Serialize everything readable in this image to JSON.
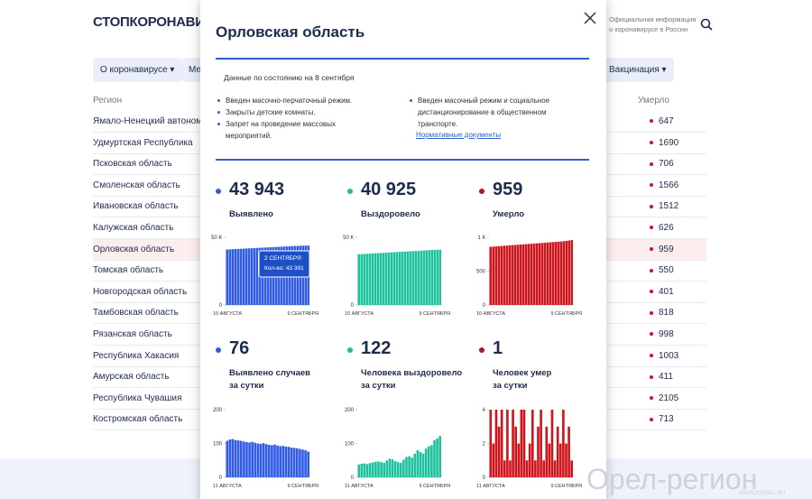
{
  "header": {
    "logo": "СТОПКОРОНАВИРУС",
    "info": [
      "Официальная информация",
      "о коронавирусе в России"
    ]
  },
  "nav": [
    "О коронавирусе",
    "Меры",
    "Вакцинация"
  ],
  "table": {
    "columns": [
      "Регион",
      "Умерло"
    ],
    "rows": [
      [
        "Ямало-Ненецкий автономный округ",
        "647"
      ],
      [
        "Удмуртская Республика",
        "1690"
      ],
      [
        "Псковская область",
        "706"
      ],
      [
        "Смоленская область",
        "1566"
      ],
      [
        "Ивановская область",
        "1512"
      ],
      [
        "Калужская область",
        "626"
      ],
      [
        "Орловская область",
        "959"
      ],
      [
        "Томская область",
        "550"
      ],
      [
        "Новгородская область",
        "401"
      ],
      [
        "Тамбовская область",
        "818"
      ],
      [
        "Рязанская область",
        "998"
      ],
      [
        "Республика Хакасия",
        "1003"
      ],
      [
        "Амурская область",
        "411"
      ],
      [
        "Республика Чувашия",
        "2105"
      ],
      [
        "Костромская область",
        "713"
      ]
    ]
  },
  "modal": {
    "title": "Орловская область",
    "date_note": "Данные по состоянию на 8 сентября",
    "bullets_left": [
      "Введен масочно-перчаточный режим.",
      "Закрыты детские комнаты.",
      "Запрет на проведение массовых мероприятий."
    ],
    "bullets_right": [
      "Введен масочный режим и социальное дистанционирование в общественном транспорте."
    ],
    "link": "Нормативные документы",
    "stats": [
      {
        "value": "43 943",
        "label": [
          "Выявлено"
        ],
        "chart": {
          "type": "bar",
          "color": "#2f5be8",
          "categories": [
            "10 АВГУСТА",
            null,
            null,
            null,
            null,
            null,
            null,
            null,
            null,
            null,
            null,
            null,
            null,
            null,
            null,
            null,
            null,
            null,
            null,
            null,
            null,
            null,
            null,
            null,
            null,
            null,
            null,
            null,
            null,
            null,
            "9 СЕНТЯБРЯ"
          ],
          "values": [
            40976,
            41083,
            41190,
            41297,
            41404,
            41511,
            41618,
            41725,
            41830,
            41935,
            42040,
            42145,
            42250,
            42352,
            42454,
            42556,
            42658,
            42760,
            42860,
            42960,
            43060,
            43160,
            43276,
            43391,
            43490,
            43580,
            43660,
            43740,
            43815,
            43880,
            43943
          ],
          "ylim": [
            0,
            50000
          ],
          "yticks": [
            0,
            {
              "value": 50000,
              "label": "50 К"
            }
          ],
          "tooltip": {
            "index": 23,
            "title": "2 СЕНТЯБРЯ",
            "text": "Кол-во: 43 391"
          }
        }
      },
      {
        "value": "40 925",
        "label": [
          "Выздоровело"
        ],
        "chart": {
          "type": "bar",
          "color": "#1fc29f",
          "categories": [
            "10 АВГУСТА",
            null,
            null,
            null,
            null,
            null,
            null,
            null,
            null,
            null,
            null,
            null,
            null,
            null,
            null,
            null,
            null,
            null,
            null,
            null,
            null,
            null,
            null,
            null,
            null,
            null,
            null,
            null,
            null,
            null,
            "9 СЕНТЯБРЯ"
          ],
          "values": [
            37510,
            37625,
            37740,
            37855,
            37970,
            38085,
            38200,
            38315,
            38430,
            38545,
            38660,
            38775,
            38890,
            39005,
            39120,
            39235,
            39350,
            39465,
            39580,
            39695,
            39810,
            39925,
            40040,
            40155,
            40270,
            40385,
            40500,
            40615,
            40730,
            40830,
            40925
          ],
          "ylim": [
            0,
            50000
          ],
          "yticks": [
            0,
            {
              "value": 50000,
              "label": "50 К"
            }
          ]
        }
      },
      {
        "value": "959",
        "label": [
          "Умерло"
        ],
        "chart": {
          "type": "bar",
          "color": "#d0141c",
          "categories": [
            "10 АВГУСТА",
            null,
            null,
            null,
            null,
            null,
            null,
            null,
            null,
            null,
            null,
            null,
            null,
            null,
            null,
            null,
            null,
            null,
            null,
            null,
            null,
            null,
            null,
            null,
            null,
            null,
            null,
            null,
            null,
            null,
            "9 СЕНТЯБРЯ"
          ],
          "values": [
            860,
            863,
            866,
            869,
            872,
            875,
            878,
            881,
            884,
            887,
            890,
            893,
            896,
            899,
            902,
            905,
            908,
            911,
            914,
            917,
            920,
            923,
            926,
            929,
            932,
            935,
            939,
            943,
            948,
            953,
            959
          ],
          "ylim": [
            0,
            1000
          ],
          "yticks": [
            0,
            500,
            {
              "value": 1000,
              "label": "1 К"
            }
          ]
        }
      },
      {
        "value": "76",
        "label": [
          "Выявлено случаев",
          "за сутки"
        ],
        "chart": {
          "type": "bar",
          "color": "#2f5be8",
          "categories": [
            "11 АВГУСТА",
            null,
            null,
            null,
            null,
            null,
            null,
            null,
            null,
            null,
            null,
            null,
            null,
            null,
            null,
            null,
            null,
            null,
            null,
            null,
            null,
            null,
            null,
            null,
            null,
            null,
            null,
            null,
            null,
            "9 СЕНТЯБРЯ"
          ],
          "values": [
            108,
            112,
            113,
            110,
            109,
            108,
            106,
            104,
            103,
            105,
            102,
            100,
            99,
            101,
            98,
            96,
            95,
            97,
            94,
            92,
            93,
            91,
            90,
            88,
            87,
            86,
            84,
            82,
            80,
            76
          ],
          "ylim": [
            0,
            200
          ],
          "yticks": [
            0,
            100,
            200
          ]
        }
      },
      {
        "value": "122",
        "label": [
          "Человека выздоровело",
          "за сутки"
        ],
        "chart": {
          "type": "bar",
          "color": "#1fc29f",
          "categories": [
            "11 АВГУСТА",
            null,
            null,
            null,
            null,
            null,
            null,
            null,
            null,
            null,
            null,
            null,
            null,
            null,
            null,
            null,
            null,
            null,
            null,
            null,
            null,
            null,
            null,
            null,
            null,
            null,
            null,
            null,
            null,
            "9 СЕНТЯБРЯ"
          ],
          "values": [
            38,
            40,
            41,
            39,
            42,
            44,
            46,
            47,
            45,
            43,
            50,
            55,
            53,
            48,
            45,
            43,
            52,
            60,
            62,
            58,
            70,
            80,
            75,
            70,
            85,
            92,
            95,
            110,
            115,
            122
          ],
          "ylim": [
            0,
            200
          ],
          "yticks": [
            0,
            100,
            200
          ]
        }
      },
      {
        "value": "1",
        "label": [
          "Человек умер",
          "за сутки"
        ],
        "chart": {
          "type": "bar",
          "color": "#d0141c",
          "categories": [
            "11 АВГУСТА",
            null,
            null,
            null,
            null,
            null,
            null,
            null,
            null,
            null,
            null,
            null,
            null,
            null,
            null,
            null,
            null,
            null,
            null,
            null,
            null,
            null,
            null,
            null,
            null,
            null,
            null,
            null,
            null,
            "9 СЕНТЯБРЯ"
          ],
          "values": [
            4,
            2,
            4,
            3,
            4,
            1,
            4,
            1,
            4,
            3,
            2,
            4,
            4,
            1,
            2,
            4,
            1,
            3,
            4,
            1,
            3,
            2,
            4,
            1,
            3,
            2,
            4,
            2,
            3,
            1
          ],
          "ylim": [
            0,
            4
          ],
          "yticks": [
            0,
            2,
            4
          ]
        }
      }
    ]
  },
  "watermark": {
    "title": "Орел-регион",
    "url": "REGIONOREL.RU"
  }
}
